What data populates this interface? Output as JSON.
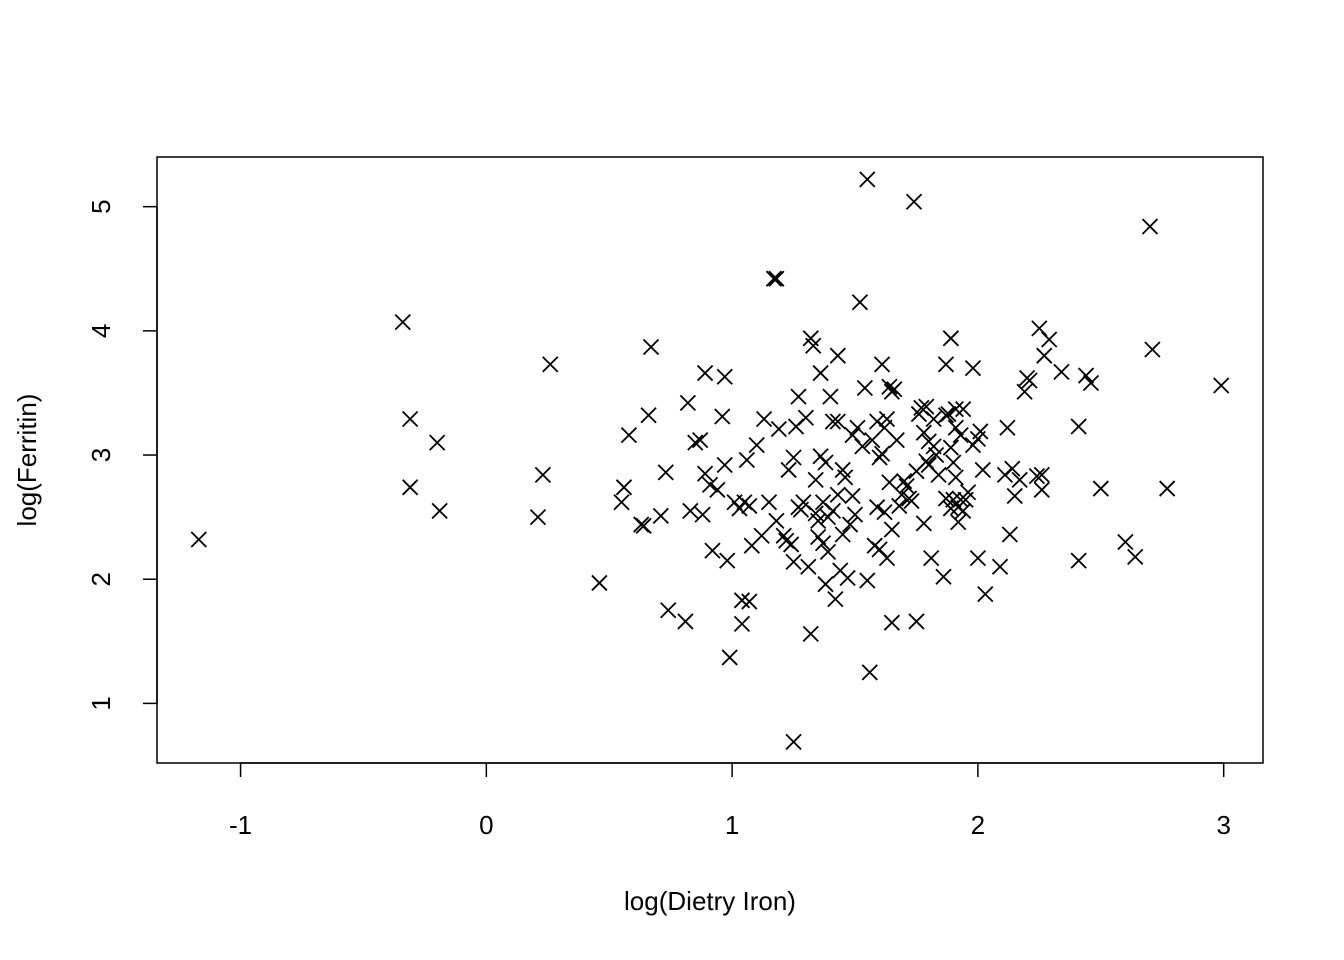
{
  "chart_data": {
    "type": "scatter",
    "title": "",
    "xlabel": "log(Dietry Iron)",
    "ylabel": "log(Ferritin)",
    "xlim": [
      -1.34,
      3.16
    ],
    "ylim": [
      0.52,
      5.4
    ],
    "xticks": [
      -1,
      0,
      1,
      2,
      3
    ],
    "xtick_labels": [
      "-1",
      "0",
      "1",
      "2",
      "3"
    ],
    "yticks": [
      1,
      2,
      3,
      4,
      5
    ],
    "ytick_labels": [
      "1",
      "2",
      "3",
      "4",
      "5"
    ],
    "marker": "x",
    "color": "#000000",
    "grid": false,
    "points": [
      [
        -1.17,
        2.32
      ],
      [
        -0.34,
        4.07
      ],
      [
        -0.31,
        3.29
      ],
      [
        -0.31,
        2.74
      ],
      [
        -0.2,
        3.1
      ],
      [
        -0.19,
        2.55
      ],
      [
        0.21,
        2.5
      ],
      [
        0.23,
        2.84
      ],
      [
        0.26,
        3.73
      ],
      [
        0.46,
        1.97
      ],
      [
        0.55,
        2.62
      ],
      [
        0.56,
        2.74
      ],
      [
        0.58,
        3.16
      ],
      [
        0.63,
        2.44
      ],
      [
        0.64,
        2.43
      ],
      [
        0.66,
        3.32
      ],
      [
        0.67,
        3.87
      ],
      [
        0.71,
        2.51
      ],
      [
        0.73,
        2.86
      ],
      [
        0.74,
        1.75
      ],
      [
        0.81,
        1.66
      ],
      [
        0.82,
        3.42
      ],
      [
        0.83,
        2.55
      ],
      [
        0.85,
        3.1
      ],
      [
        0.87,
        3.12
      ],
      [
        0.88,
        2.52
      ],
      [
        0.89,
        3.66
      ],
      [
        0.89,
        2.85
      ],
      [
        0.91,
        2.76
      ],
      [
        0.92,
        2.23
      ],
      [
        0.94,
        2.72
      ],
      [
        0.96,
        3.31
      ],
      [
        0.97,
        3.63
      ],
      [
        0.97,
        2.92
      ],
      [
        0.98,
        2.15
      ],
      [
        0.99,
        1.37
      ],
      [
        1.01,
        2.62
      ],
      [
        1.03,
        2.57
      ],
      [
        1.04,
        1.83
      ],
      [
        1.04,
        1.64
      ],
      [
        1.05,
        2.62
      ],
      [
        1.06,
        2.96
      ],
      [
        1.07,
        2.59
      ],
      [
        1.07,
        1.82
      ],
      [
        1.08,
        2.27
      ],
      [
        1.1,
        3.08
      ],
      [
        1.12,
        2.35
      ],
      [
        1.13,
        3.29
      ],
      [
        1.15,
        2.62
      ],
      [
        1.17,
        4.42
      ],
      [
        1.18,
        4.42
      ],
      [
        1.18,
        2.47
      ],
      [
        1.19,
        3.21
      ],
      [
        1.21,
        2.35
      ],
      [
        1.22,
        2.31
      ],
      [
        1.23,
        2.88
      ],
      [
        1.24,
        2.28
      ],
      [
        1.25,
        2.98
      ],
      [
        1.25,
        2.14
      ],
      [
        1.25,
        0.69
      ],
      [
        1.26,
        3.23
      ],
      [
        1.27,
        3.47
      ],
      [
        1.27,
        2.58
      ],
      [
        1.28,
        2.56
      ],
      [
        1.29,
        2.62
      ],
      [
        1.3,
        3.3
      ],
      [
        1.31,
        2.1
      ],
      [
        1.32,
        3.94
      ],
      [
        1.32,
        1.56
      ],
      [
        1.33,
        3.88
      ],
      [
        1.34,
        2.8
      ],
      [
        1.34,
        2.53
      ],
      [
        1.35,
        2.34
      ],
      [
        1.35,
        2.47
      ],
      [
        1.36,
        3.66
      ],
      [
        1.36,
        2.99
      ],
      [
        1.37,
        2.62
      ],
      [
        1.37,
        2.29
      ],
      [
        1.38,
        2.94
      ],
      [
        1.38,
        1.96
      ],
      [
        1.39,
        2.5
      ],
      [
        1.39,
        2.22
      ],
      [
        1.4,
        3.47
      ],
      [
        1.41,
        2.55
      ],
      [
        1.41,
        3.27
      ],
      [
        1.42,
        1.84
      ],
      [
        1.43,
        3.8
      ],
      [
        1.43,
        3.27
      ],
      [
        1.43,
        2.68
      ],
      [
        1.44,
        2.07
      ],
      [
        1.45,
        2.88
      ],
      [
        1.45,
        2.36
      ],
      [
        1.46,
        2.82
      ],
      [
        1.47,
        2.01
      ],
      [
        1.48,
        2.44
      ],
      [
        1.49,
        3.16
      ],
      [
        1.49,
        2.67
      ],
      [
        1.5,
        2.52
      ],
      [
        1.51,
        3.22
      ],
      [
        1.52,
        4.23
      ],
      [
        1.53,
        3.07
      ],
      [
        1.54,
        3.54
      ],
      [
        1.55,
        5.22
      ],
      [
        1.55,
        1.99
      ],
      [
        1.56,
        1.25
      ],
      [
        1.57,
        3.12
      ],
      [
        1.58,
        2.27
      ],
      [
        1.59,
        3.27
      ],
      [
        1.59,
        2.58
      ],
      [
        1.6,
        2.98
      ],
      [
        1.6,
        2.24
      ],
      [
        1.61,
        3.73
      ],
      [
        1.61,
        3.01
      ],
      [
        1.62,
        3.22
      ],
      [
        1.62,
        2.54
      ],
      [
        1.63,
        3.29
      ],
      [
        1.63,
        2.17
      ],
      [
        1.64,
        2.78
      ],
      [
        1.64,
        3.55
      ],
      [
        1.65,
        3.51
      ],
      [
        1.65,
        2.4
      ],
      [
        1.65,
        1.65
      ],
      [
        1.66,
        3.53
      ],
      [
        1.67,
        3.12
      ],
      [
        1.68,
        2.59
      ],
      [
        1.69,
        2.68
      ],
      [
        1.7,
        2.79
      ],
      [
        1.71,
        2.75
      ],
      [
        1.72,
        2.65
      ],
      [
        1.73,
        2.63
      ],
      [
        1.74,
        5.04
      ],
      [
        1.75,
        2.87
      ],
      [
        1.75,
        1.66
      ],
      [
        1.76,
        3.33
      ],
      [
        1.77,
        3.38
      ],
      [
        1.78,
        3.18
      ],
      [
        1.78,
        2.45
      ],
      [
        1.79,
        3.39
      ],
      [
        1.79,
        2.95
      ],
      [
        1.8,
        3.11
      ],
      [
        1.8,
        2.92
      ],
      [
        1.81,
        2.17
      ],
      [
        1.82,
        3.07
      ],
      [
        1.82,
        3.29
      ],
      [
        1.83,
        3.0
      ],
      [
        1.84,
        2.84
      ],
      [
        1.86,
        2.02
      ],
      [
        1.87,
        2.65
      ],
      [
        1.87,
        3.32
      ],
      [
        1.87,
        3.73
      ],
      [
        1.88,
        3.33
      ],
      [
        1.89,
        3.94
      ],
      [
        1.89,
        3.06
      ],
      [
        1.89,
        2.57
      ],
      [
        1.9,
        2.94
      ],
      [
        1.9,
        2.64
      ],
      [
        1.91,
        3.37
      ],
      [
        1.91,
        3.22
      ],
      [
        1.91,
        2.82
      ],
      [
        1.92,
        2.58
      ],
      [
        1.92,
        2.46
      ],
      [
        1.93,
        3.16
      ],
      [
        1.93,
        2.64
      ],
      [
        1.94,
        3.37
      ],
      [
        1.94,
        2.55
      ],
      [
        1.95,
        2.64
      ],
      [
        1.96,
        2.7
      ],
      [
        1.98,
        3.7
      ],
      [
        1.98,
        3.08
      ],
      [
        2.0,
        3.13
      ],
      [
        2.0,
        2.17
      ],
      [
        2.01,
        3.19
      ],
      [
        2.02,
        2.88
      ],
      [
        2.03,
        1.88
      ],
      [
        2.09,
        2.1
      ],
      [
        2.11,
        2.84
      ],
      [
        2.12,
        3.22
      ],
      [
        2.13,
        2.36
      ],
      [
        2.14,
        2.89
      ],
      [
        2.15,
        2.67
      ],
      [
        2.17,
        2.8
      ],
      [
        2.19,
        3.51
      ],
      [
        2.2,
        3.62
      ],
      [
        2.21,
        3.6
      ],
      [
        2.24,
        2.83
      ],
      [
        2.25,
        4.02
      ],
      [
        2.26,
        2.84
      ],
      [
        2.26,
        2.72
      ],
      [
        2.27,
        3.8
      ],
      [
        2.29,
        3.93
      ],
      [
        2.34,
        3.67
      ],
      [
        2.41,
        3.23
      ],
      [
        2.41,
        2.15
      ],
      [
        2.44,
        3.64
      ],
      [
        2.46,
        3.58
      ],
      [
        2.5,
        2.73
      ],
      [
        2.6,
        2.3
      ],
      [
        2.64,
        2.18
      ],
      [
        2.7,
        4.84
      ],
      [
        2.71,
        3.85
      ],
      [
        2.77,
        2.73
      ],
      [
        2.99,
        3.56
      ]
    ]
  }
}
